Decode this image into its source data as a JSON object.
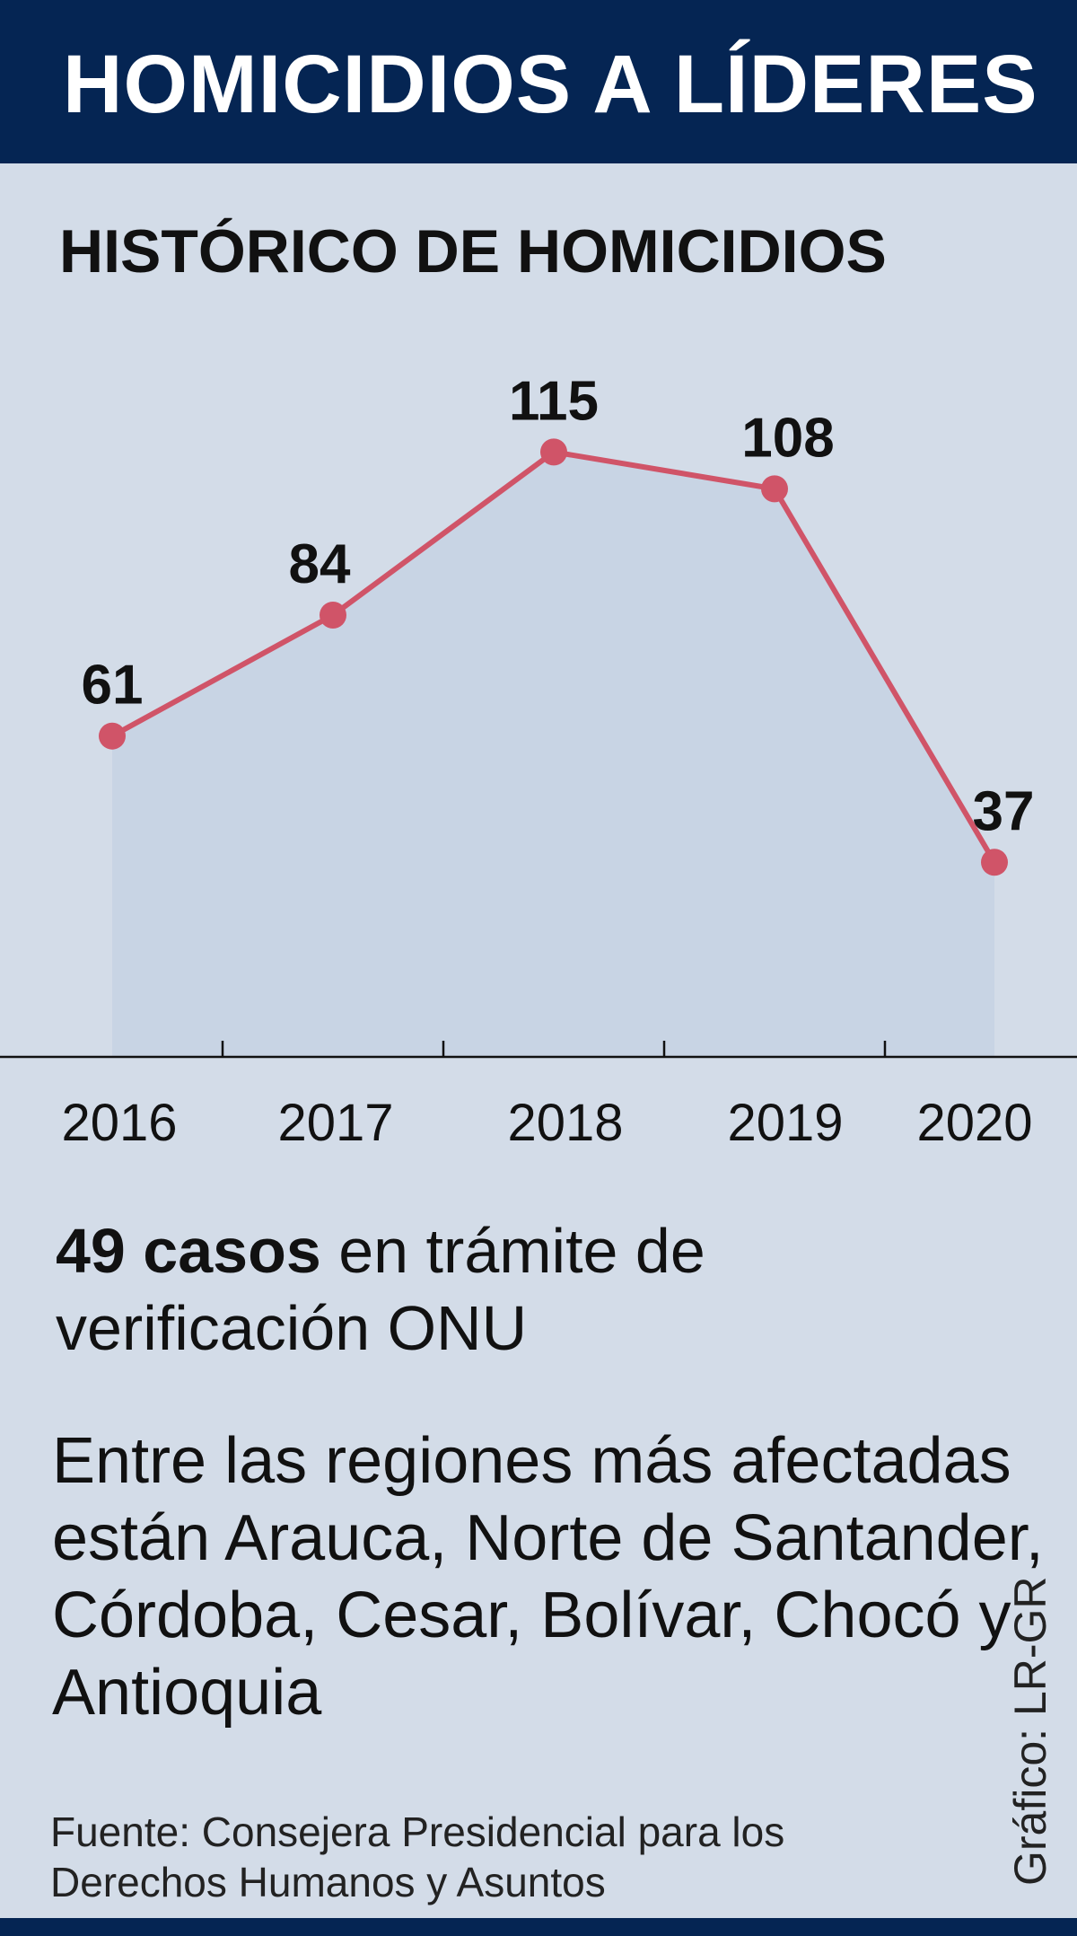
{
  "header": {
    "title": "HOMICIDIOS A LÍDERES"
  },
  "chart_data": {
    "type": "area",
    "title": "HISTÓRICO DE HOMICIDIOS",
    "xlabel": "",
    "ylabel": "",
    "x": [
      "2016",
      "2017",
      "2018",
      "2019",
      "2020"
    ],
    "series": [
      {
        "values": [
          61,
          84,
          115,
          108,
          37
        ]
      }
    ],
    "ylim": [
      0,
      130
    ],
    "grid": false,
    "colors": {
      "line": "#d05468",
      "area": "#c8d4e4",
      "axis": "#111111"
    }
  },
  "notes": {
    "cases_bold": "49 casos",
    "cases_rest": " en trámite de verificación ONU",
    "regions": "Entre las regiones más afectadas están Arauca, Norte de Santander, Córdoba, Cesar, Bolívar, Chocó y Antioquia"
  },
  "source": "Fuente: Consejera Presidencial para los Derechos Humanos y Asuntos",
  "credit": "Gráfico: LR-GR"
}
